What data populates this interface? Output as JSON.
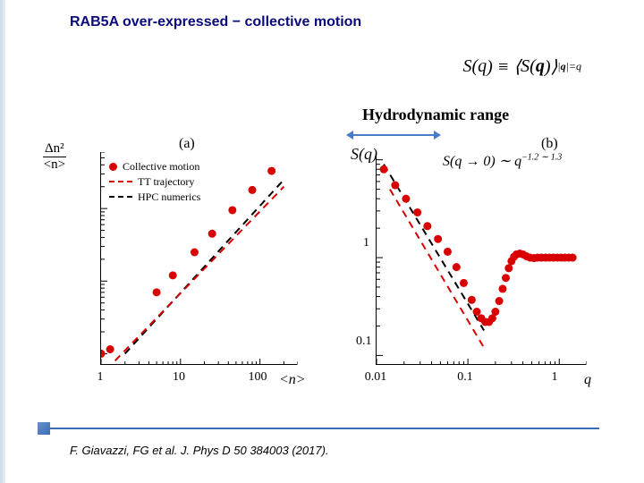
{
  "title": "RAB5A over-expressed − collective motion",
  "citation": "F. Giavazzi, FG et al. J. Phys D 50 384003 (2017).",
  "formula_top": "S(q) ≡ ⟨S(q)⟩|q|=q",
  "hydro_label": "Hydrodynamic range",
  "plot_a": {
    "panel_label": "(a)",
    "xlabel": "<n>",
    "ylabel_num": "Δn²",
    "ylabel_den": "<n>",
    "xticks": [
      1,
      10,
      100
    ],
    "yticks_shown": 5,
    "legend": [
      {
        "type": "dot",
        "color": "#d80000",
        "label": "Collective motion"
      },
      {
        "type": "dash",
        "color": "#d80000",
        "label": "TT trajectory"
      },
      {
        "type": "dash",
        "color": "#000000",
        "label": "HPC numerics"
      }
    ],
    "data_points": [
      {
        "x": 1.0,
        "y": 1.0
      },
      {
        "x": 1.3,
        "y": 1.15
      },
      {
        "x": 5,
        "y": 7
      },
      {
        "x": 8,
        "y": 12
      },
      {
        "x": 15,
        "y": 25
      },
      {
        "x": 25,
        "y": 45
      },
      {
        "x": 45,
        "y": 95
      },
      {
        "x": 80,
        "y": 180
      },
      {
        "x": 140,
        "y": 330
      }
    ],
    "line_red": [
      {
        "x": 1.5,
        "y": 0.8
      },
      {
        "x": 200,
        "y": 200
      }
    ],
    "line_black": [
      {
        "x": 2,
        "y": 1
      },
      {
        "x": 200,
        "y": 250
      }
    ],
    "xlim": [
      1,
      300
    ],
    "ylim": [
      0.7,
      600
    ],
    "colors": {
      "points": "#d80000",
      "line_red": "#d80000",
      "line_black": "#000000"
    }
  },
  "plot_b": {
    "panel_label": "(b)",
    "xlabel": "q",
    "ylabel": "S(q)",
    "formula": "S(q → 0) ∼ q⁻¹·² ~ ¹·³",
    "xticks": [
      0.01,
      0.1,
      1
    ],
    "yticks": [
      0.1,
      1
    ],
    "data_points": [
      {
        "x": 0.012,
        "y": 8.0
      },
      {
        "x": 0.016,
        "y": 5.5
      },
      {
        "x": 0.021,
        "y": 4.0
      },
      {
        "x": 0.028,
        "y": 2.9
      },
      {
        "x": 0.036,
        "y": 2.1
      },
      {
        "x": 0.047,
        "y": 1.55
      },
      {
        "x": 0.06,
        "y": 1.15
      },
      {
        "x": 0.075,
        "y": 0.8
      },
      {
        "x": 0.09,
        "y": 0.55
      },
      {
        "x": 0.11,
        "y": 0.37
      },
      {
        "x": 0.125,
        "y": 0.28
      },
      {
        "x": 0.14,
        "y": 0.24
      },
      {
        "x": 0.155,
        "y": 0.22
      },
      {
        "x": 0.17,
        "y": 0.22
      },
      {
        "x": 0.185,
        "y": 0.24
      },
      {
        "x": 0.2,
        "y": 0.28
      },
      {
        "x": 0.22,
        "y": 0.36
      },
      {
        "x": 0.24,
        "y": 0.48
      },
      {
        "x": 0.26,
        "y": 0.62
      },
      {
        "x": 0.28,
        "y": 0.78
      },
      {
        "x": 0.3,
        "y": 0.92
      },
      {
        "x": 0.32,
        "y": 1.02
      },
      {
        "x": 0.34,
        "y": 1.08
      },
      {
        "x": 0.37,
        "y": 1.1
      },
      {
        "x": 0.4,
        "y": 1.08
      },
      {
        "x": 0.44,
        "y": 1.03
      },
      {
        "x": 0.48,
        "y": 1.0
      },
      {
        "x": 0.53,
        "y": 0.99
      },
      {
        "x": 0.58,
        "y": 1.0
      },
      {
        "x": 0.64,
        "y": 1.0
      },
      {
        "x": 0.71,
        "y": 1.0
      },
      {
        "x": 0.78,
        "y": 1.0
      },
      {
        "x": 0.86,
        "y": 1.0
      },
      {
        "x": 0.95,
        "y": 1.0
      },
      {
        "x": 1.05,
        "y": 1.0
      },
      {
        "x": 1.15,
        "y": 1.0
      },
      {
        "x": 1.27,
        "y": 1.0
      },
      {
        "x": 1.4,
        "y": 1.0
      }
    ],
    "line_red": [
      {
        "x": 0.014,
        "y": 5
      },
      {
        "x": 0.15,
        "y": 0.12
      }
    ],
    "line_black": [
      {
        "x": 0.012,
        "y": 9
      },
      {
        "x": 0.15,
        "y": 0.18
      }
    ],
    "xlim": [
      0.01,
      2
    ],
    "ylim": [
      0.08,
      12
    ],
    "colors": {
      "points": "#d80000",
      "line_red": "#d80000",
      "line_black": "#000000"
    }
  }
}
